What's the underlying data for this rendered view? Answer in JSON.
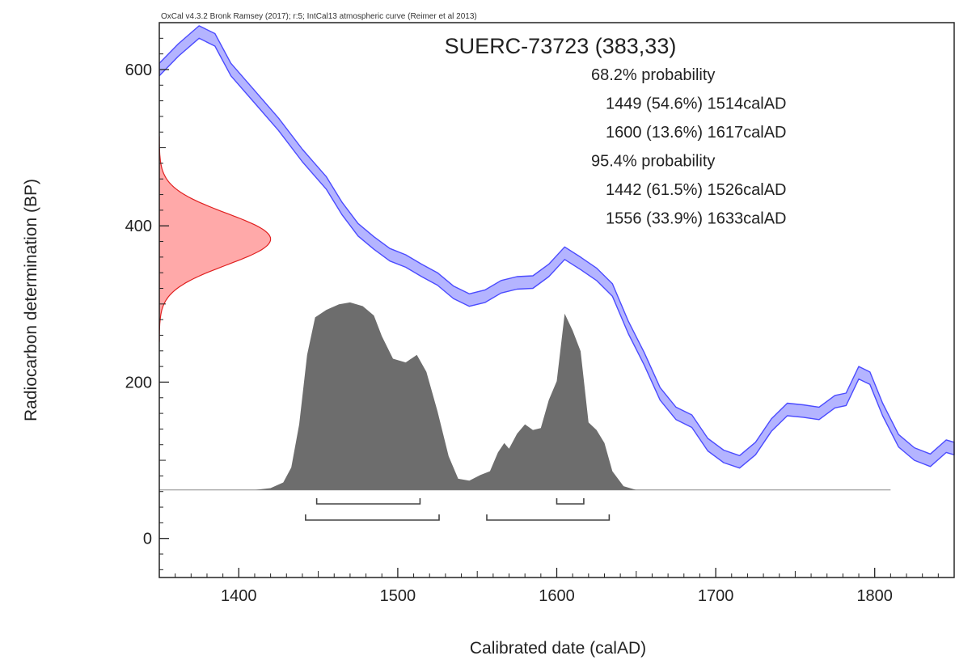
{
  "chart_data": {
    "type": "area",
    "credit": "OxCal v4.3.2 Bronk Ramsey (2017); r:5; IntCal13 atmospheric curve (Reimer et al 2013)",
    "title": "SUERC-73723 (383,33)",
    "xlabel": "Calibrated date (calAD)",
    "ylabel": "Radiocarbon determination (BP)",
    "xlim": [
      1350,
      1850
    ],
    "ylim": [
      -50,
      660
    ],
    "x_ticks": [
      1400,
      1500,
      1600,
      1700,
      1800
    ],
    "y_ticks": [
      0,
      200,
      400,
      600
    ],
    "measurement": {
      "bp": 383,
      "error": 33
    },
    "calibration_curve": {
      "name": "IntCal13",
      "color": "#4b4bff",
      "fill": "#9b9bff",
      "half_width": 8,
      "points": [
        [
          1350,
          600
        ],
        [
          1362,
          625
        ],
        [
          1375,
          648
        ],
        [
          1385,
          638
        ],
        [
          1395,
          600
        ],
        [
          1410,
          565
        ],
        [
          1425,
          530
        ],
        [
          1440,
          490
        ],
        [
          1455,
          455
        ],
        [
          1465,
          422
        ],
        [
          1475,
          395
        ],
        [
          1485,
          378
        ],
        [
          1495,
          363
        ],
        [
          1505,
          355
        ],
        [
          1515,
          343
        ],
        [
          1525,
          332
        ],
        [
          1535,
          315
        ],
        [
          1545,
          305
        ],
        [
          1555,
          310
        ],
        [
          1565,
          322
        ],
        [
          1575,
          327
        ],
        [
          1585,
          328
        ],
        [
          1595,
          343
        ],
        [
          1605,
          365
        ],
        [
          1615,
          352
        ],
        [
          1625,
          338
        ],
        [
          1635,
          318
        ],
        [
          1645,
          270
        ],
        [
          1655,
          230
        ],
        [
          1665,
          185
        ],
        [
          1675,
          160
        ],
        [
          1685,
          150
        ],
        [
          1695,
          120
        ],
        [
          1705,
          105
        ],
        [
          1715,
          98
        ],
        [
          1725,
          115
        ],
        [
          1735,
          145
        ],
        [
          1745,
          165
        ],
        [
          1755,
          163
        ],
        [
          1765,
          160
        ],
        [
          1775,
          175
        ],
        [
          1782,
          178
        ],
        [
          1790,
          212
        ],
        [
          1797,
          205
        ],
        [
          1805,
          165
        ],
        [
          1815,
          125
        ],
        [
          1825,
          108
        ],
        [
          1835,
          100
        ],
        [
          1845,
          118
        ],
        [
          1850,
          115
        ]
      ]
    },
    "measurement_distribution": {
      "color": "#e02020",
      "fill": "#ff9a9a",
      "height": 70
    },
    "calibrated_distribution": {
      "color": "#6d6d6d",
      "baseline_bp": 62,
      "peak_height_bp": 240,
      "baseline_range": [
        1345,
        1810
      ],
      "points": [
        [
          1410,
          0
        ],
        [
          1420,
          0.01
        ],
        [
          1428,
          0.04
        ],
        [
          1433,
          0.12
        ],
        [
          1438,
          0.35
        ],
        [
          1443,
          0.72
        ],
        [
          1448,
          0.92
        ],
        [
          1455,
          0.96
        ],
        [
          1463,
          0.99
        ],
        [
          1470,
          1.0
        ],
        [
          1478,
          0.98
        ],
        [
          1485,
          0.93
        ],
        [
          1490,
          0.82
        ],
        [
          1497,
          0.7
        ],
        [
          1505,
          0.68
        ],
        [
          1512,
          0.72
        ],
        [
          1518,
          0.63
        ],
        [
          1525,
          0.42
        ],
        [
          1532,
          0.18
        ],
        [
          1538,
          0.06
        ],
        [
          1545,
          0.05
        ],
        [
          1552,
          0.08
        ],
        [
          1558,
          0.1
        ],
        [
          1563,
          0.2
        ],
        [
          1567,
          0.25
        ],
        [
          1570,
          0.22
        ],
        [
          1575,
          0.3
        ],
        [
          1580,
          0.35
        ],
        [
          1585,
          0.32
        ],
        [
          1590,
          0.33
        ],
        [
          1595,
          0.48
        ],
        [
          1600,
          0.58
        ],
        [
          1605,
          0.94
        ],
        [
          1610,
          0.85
        ],
        [
          1615,
          0.74
        ],
        [
          1620,
          0.36
        ],
        [
          1625,
          0.32
        ],
        [
          1630,
          0.25
        ],
        [
          1635,
          0.1
        ],
        [
          1642,
          0.02
        ],
        [
          1650,
          0
        ]
      ]
    },
    "ranges": [
      {
        "level": "68.2%",
        "from": 1449,
        "to": 1514,
        "percent": "54.6%"
      },
      {
        "level": "68.2%",
        "from": 1600,
        "to": 1617,
        "percent": "13.6%"
      },
      {
        "level": "95.4%",
        "from": 1442,
        "to": 1526,
        "percent": "61.5%"
      },
      {
        "level": "95.4%",
        "from": 1556,
        "to": 1633,
        "percent": "33.9%"
      }
    ],
    "ranges_text": [
      "68.2% probability",
      "1449 (54.6%) 1514calAD",
      "1600 (13.6%) 1617calAD",
      "95.4% probability",
      "1442 (61.5%) 1526calAD",
      "1556 (33.9%) 1633calAD"
    ]
  }
}
